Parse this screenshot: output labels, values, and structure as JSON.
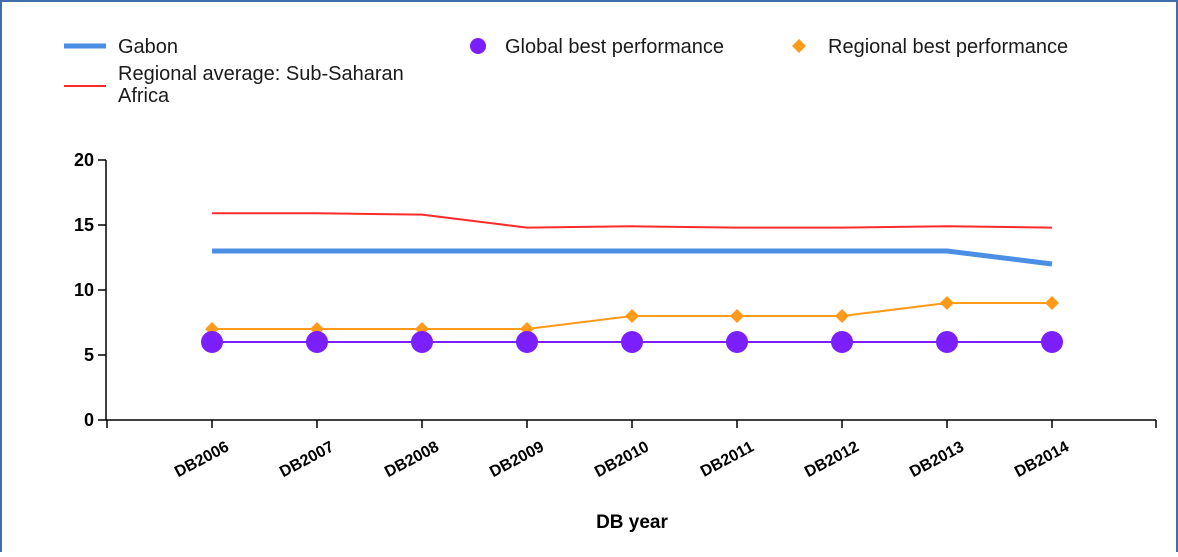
{
  "chart_data": {
    "type": "line",
    "categories": [
      "DB2006",
      "DB2007",
      "DB2008",
      "DB2009",
      "DB2010",
      "DB2011",
      "DB2012",
      "DB2013",
      "DB2014"
    ],
    "xlabel": "DB year",
    "ylabel": "",
    "ylim": [
      0,
      20
    ],
    "yticks": [
      "0",
      "5",
      "10",
      "15",
      "20"
    ],
    "grid": false,
    "legend_position": "top",
    "series": [
      {
        "name": "Gabon",
        "color": "#4a8fe3",
        "marker": "none",
        "values": [
          13,
          13,
          13,
          13,
          13,
          13,
          13,
          13,
          12
        ]
      },
      {
        "name": "Regional average: Sub-Saharan Africa",
        "color": "#ff2a2a",
        "marker": "none",
        "values": [
          15.9,
          15.9,
          15.8,
          14.8,
          14.9,
          14.8,
          14.8,
          14.9,
          14.8
        ]
      },
      {
        "name": "Global best performance",
        "color": "#7b1fff",
        "marker": "circle",
        "values": [
          6,
          6,
          6,
          6,
          6,
          6,
          6,
          6,
          6
        ]
      },
      {
        "name": "Regional best performance",
        "color": "#ff9a1a",
        "marker": "diamond",
        "values": [
          7,
          7,
          7,
          7,
          8,
          8,
          8,
          9,
          9
        ]
      }
    ],
    "legend_lines": {
      "regional_average": [
        "Regional average: Sub-Saharan",
        "Africa"
      ]
    }
  }
}
